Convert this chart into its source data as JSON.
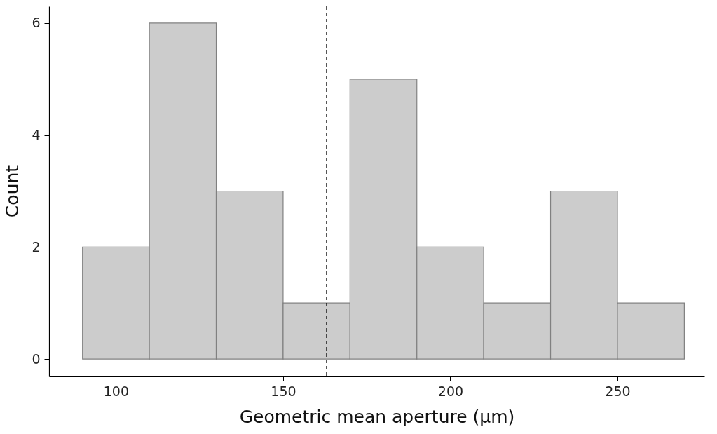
{
  "chart_data": {
    "type": "histogram",
    "xlabel": "Geometric mean aperture (μm)",
    "ylabel": "Count",
    "bins": [
      90,
      110,
      130,
      150,
      170,
      190,
      210,
      230,
      250,
      270
    ],
    "values": [
      2,
      6,
      3,
      1,
      5,
      2,
      1,
      3,
      1
    ],
    "color": "#cccccc",
    "xlim": [
      80,
      276
    ],
    "ylim": [
      -0.3,
      6.3
    ],
    "xticks": [
      100,
      150,
      200,
      250
    ],
    "yticks": [
      0,
      2,
      4,
      6
    ],
    "grid": false,
    "ref_lines": [
      {
        "axis": "x",
        "value": 163,
        "color": "#000000",
        "line_style": "dashed"
      }
    ]
  }
}
